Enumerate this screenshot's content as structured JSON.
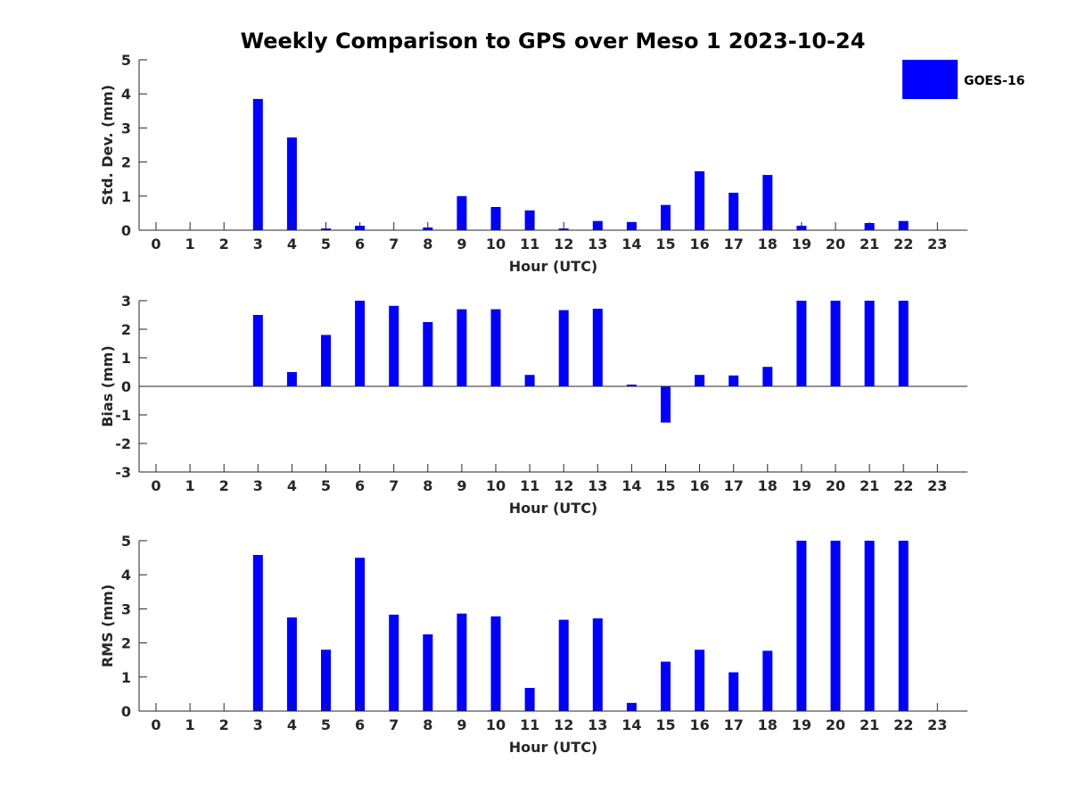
{
  "figure_title": "Weekly Comparison to GPS over Meso 1 2023-10-24",
  "legend": {
    "label": "GOES-16",
    "color": "#0000ff",
    "placement": "top-right"
  },
  "chart_data": [
    {
      "type": "bar",
      "categories": [
        "0",
        "1",
        "2",
        "3",
        "4",
        "5",
        "6",
        "7",
        "8",
        "9",
        "10",
        "11",
        "12",
        "13",
        "14",
        "15",
        "16",
        "17",
        "18",
        "19",
        "20",
        "21",
        "22",
        "23"
      ],
      "series": [
        {
          "name": "GOES-16",
          "values": [
            0,
            0,
            0,
            3.85,
            2.72,
            0.05,
            0.13,
            0,
            0.08,
            1.0,
            0.68,
            0.58,
            0.05,
            0.27,
            0.24,
            0.74,
            1.73,
            1.1,
            1.62,
            0.13,
            0,
            0.21,
            0.27,
            0
          ]
        }
      ],
      "xlabel": "Hour (UTC)",
      "ylabel": "Std. Dev. (mm)",
      "ylim": [
        0,
        5
      ],
      "yticks": [
        "0",
        "1",
        "2",
        "3",
        "4",
        "5"
      ],
      "grid": false
    },
    {
      "type": "bar",
      "categories": [
        "0",
        "1",
        "2",
        "3",
        "4",
        "5",
        "6",
        "7",
        "8",
        "9",
        "10",
        "11",
        "12",
        "13",
        "14",
        "15",
        "16",
        "17",
        "18",
        "19",
        "20",
        "21",
        "22",
        "23"
      ],
      "series": [
        {
          "name": "GOES-16",
          "values": [
            0,
            0,
            0,
            2.5,
            0.5,
            1.8,
            3.0,
            2.82,
            2.25,
            2.7,
            2.7,
            0.4,
            2.67,
            2.72,
            0.06,
            -1.27,
            0.4,
            0.38,
            0.68,
            3.0,
            3.0,
            3.0,
            3.0,
            0
          ]
        }
      ],
      "xlabel": "Hour (UTC)",
      "ylabel": "Bias (mm)",
      "ylim": [
        -3,
        3
      ],
      "yticks": [
        "-3",
        "-2",
        "-1",
        "0",
        "1",
        "2",
        "3"
      ],
      "zero_line": true,
      "grid": false
    },
    {
      "type": "bar",
      "categories": [
        "0",
        "1",
        "2",
        "3",
        "4",
        "5",
        "6",
        "7",
        "8",
        "9",
        "10",
        "11",
        "12",
        "13",
        "14",
        "15",
        "16",
        "17",
        "18",
        "19",
        "20",
        "21",
        "22",
        "23"
      ],
      "series": [
        {
          "name": "GOES-16",
          "values": [
            0,
            0,
            0,
            4.58,
            2.75,
            1.8,
            4.5,
            2.83,
            2.25,
            2.86,
            2.78,
            0.68,
            2.68,
            2.72,
            0.24,
            1.45,
            1.8,
            1.14,
            1.77,
            5.0,
            5.0,
            5.0,
            5.0,
            0
          ]
        }
      ],
      "xlabel": "Hour (UTC)",
      "ylabel": "RMS (mm)",
      "ylim": [
        0,
        5
      ],
      "yticks": [
        "0",
        "1",
        "2",
        "3",
        "4",
        "5"
      ],
      "grid": false
    }
  ]
}
